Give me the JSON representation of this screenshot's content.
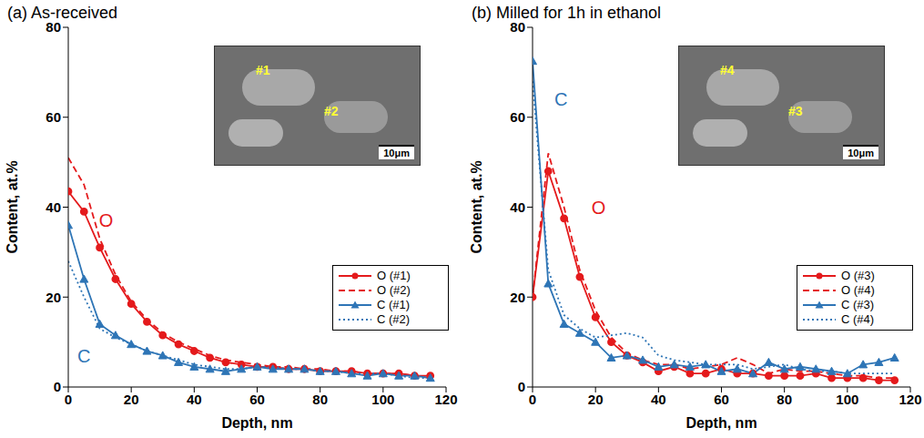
{
  "chart_data": [
    {
      "type": "line",
      "title": "(a) As-received",
      "x_label": "Depth, nm",
      "y_label": "Content, at.%",
      "x": [
        0,
        5,
        10,
        15,
        20,
        25,
        30,
        35,
        40,
        45,
        50,
        55,
        60,
        65,
        70,
        75,
        80,
        85,
        90,
        95,
        100,
        105,
        110,
        115
      ],
      "xlim": [
        0,
        120
      ],
      "xticks": [
        0,
        20,
        40,
        60,
        80,
        100,
        120
      ],
      "ylim": [
        0,
        80
      ],
      "yticks": [
        0,
        20,
        40,
        60,
        80
      ],
      "grid": false,
      "legend": "lower right",
      "series": [
        {
          "name": "O (#1)",
          "color": "#e41a1c",
          "marker": "circle",
          "line_style": "solid",
          "values": [
            43.5,
            39,
            31,
            24,
            18.5,
            14.5,
            11.5,
            9.5,
            8,
            6.5,
            5.5,
            5,
            4.5,
            4.5,
            4,
            4,
            3.5,
            3.5,
            3.5,
            3,
            3,
            3,
            2.5,
            2.5
          ]
        },
        {
          "name": "O (#2)",
          "color": "#e41a1c",
          "marker": "none",
          "line_style": "dashed",
          "values": [
            51,
            45,
            33,
            25,
            19,
            15,
            12,
            10,
            8.5,
            7,
            6,
            5.5,
            5,
            4.5,
            4.5,
            4,
            4,
            3.5,
            3.5,
            3,
            3,
            3,
            2.5,
            2
          ]
        },
        {
          "name": "C (#1)",
          "color": "#2e75b6",
          "marker": "triangle",
          "line_style": "solid",
          "values": [
            36,
            24,
            14,
            11.5,
            9.5,
            8,
            7,
            5.5,
            4.5,
            4,
            3.5,
            4,
            4.5,
            4,
            4,
            4,
            3.5,
            3.5,
            3,
            2.5,
            3,
            2.5,
            2.5,
            2
          ]
        },
        {
          "name": "C (#2)",
          "color": "#2e75b6",
          "marker": "none",
          "line_style": "dotted",
          "values": [
            28,
            20,
            13,
            11,
            9.5,
            8,
            7,
            6,
            5,
            4.5,
            4,
            4,
            4.5,
            4.5,
            4,
            4,
            3.5,
            3.5,
            3,
            3,
            3,
            2.5,
            2,
            2
          ]
        }
      ],
      "annotations": [
        {
          "text": "O",
          "x": 12,
          "y": 37,
          "color": "#e41a1c"
        },
        {
          "text": "C",
          "x": 5,
          "y": 7,
          "color": "#2e75b6"
        }
      ],
      "inset": {
        "labels": [
          "#1",
          "#2"
        ],
        "scale_bar": "10μm"
      }
    },
    {
      "type": "line",
      "title": "(b) Milled for 1h in ethanol",
      "x_label": "Depth, nm",
      "y_label": "Content, at.%",
      "x": [
        0,
        5,
        10,
        15,
        20,
        25,
        30,
        35,
        40,
        45,
        50,
        55,
        60,
        65,
        70,
        75,
        80,
        85,
        90,
        95,
        100,
        105,
        110,
        115
      ],
      "xlim": [
        0,
        120
      ],
      "xticks": [
        0,
        20,
        40,
        60,
        80,
        100,
        120
      ],
      "ylim": [
        0,
        80
      ],
      "yticks": [
        0,
        20,
        40,
        60,
        80
      ],
      "grid": false,
      "legend": "lower right",
      "series": [
        {
          "name": "O (#3)",
          "color": "#e41a1c",
          "marker": "circle",
          "line_style": "solid",
          "values": [
            20,
            48,
            37.5,
            24.5,
            15.5,
            10,
            7,
            5.5,
            3.5,
            4.5,
            3,
            3,
            4,
            3,
            3,
            2.5,
            2.5,
            2.5,
            3,
            2,
            2,
            2,
            1.5,
            1.5
          ]
        },
        {
          "name": "O (#4)",
          "color": "#e41a1c",
          "marker": "none",
          "line_style": "dashed",
          "values": [
            20,
            52,
            40,
            26,
            17,
            11,
            7.5,
            6,
            5,
            5,
            4,
            4.5,
            5,
            6.5,
            5,
            3,
            4,
            3.5,
            3.5,
            3,
            2.5,
            2.5,
            2,
            2
          ]
        },
        {
          "name": "C (#3)",
          "color": "#2e75b6",
          "marker": "triangle",
          "line_style": "solid",
          "values": [
            72.5,
            23,
            14,
            12,
            10,
            6.5,
            7,
            6,
            4.5,
            5,
            4.5,
            5,
            3.5,
            4,
            3,
            5.5,
            4,
            4.5,
            4,
            3.5,
            3,
            5,
            5.5,
            6.5
          ]
        },
        {
          "name": "C (#4)",
          "color": "#2e75b6",
          "marker": "none",
          "line_style": "dotted",
          "values": [
            68,
            26,
            16,
            13,
            11,
            11.5,
            12,
            11,
            7,
            6,
            5.5,
            5,
            5,
            5,
            4,
            4.5,
            5,
            4,
            3.5,
            3.5,
            3,
            3,
            3,
            3
          ]
        }
      ],
      "annotations": [
        {
          "text": "O",
          "x": 21,
          "y": 40,
          "color": "#e41a1c"
        },
        {
          "text": "C",
          "x": 9,
          "y": 64,
          "color": "#2e75b6"
        }
      ],
      "inset": {
        "labels": [
          "#4",
          "#3"
        ],
        "scale_bar": "10μm"
      }
    }
  ]
}
